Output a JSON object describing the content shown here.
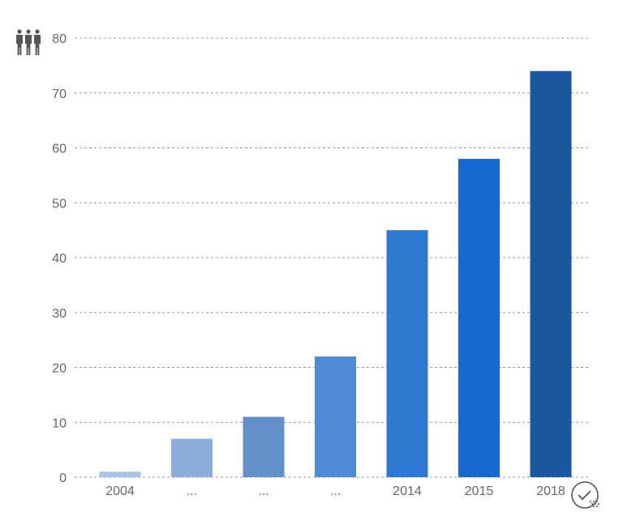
{
  "chart_data": {
    "type": "bar",
    "categories": [
      "2004",
      "...",
      "...",
      "...",
      "2014",
      "2015",
      "2018"
    ],
    "values": [
      1,
      7,
      11,
      22,
      45,
      58,
      74
    ],
    "bar_colors": [
      "#a8c3e5",
      "#8caedb",
      "#6390c8",
      "#4f8bd6",
      "#2e78d2",
      "#1767d0",
      "#1c589f"
    ],
    "ylim": [
      0,
      80
    ],
    "yticks": [
      0,
      10,
      20,
      30,
      40,
      50,
      60,
      70,
      80
    ],
    "grid": true,
    "y_axis_icon": "people-icon",
    "corner_icon": "clock-check-icon"
  }
}
